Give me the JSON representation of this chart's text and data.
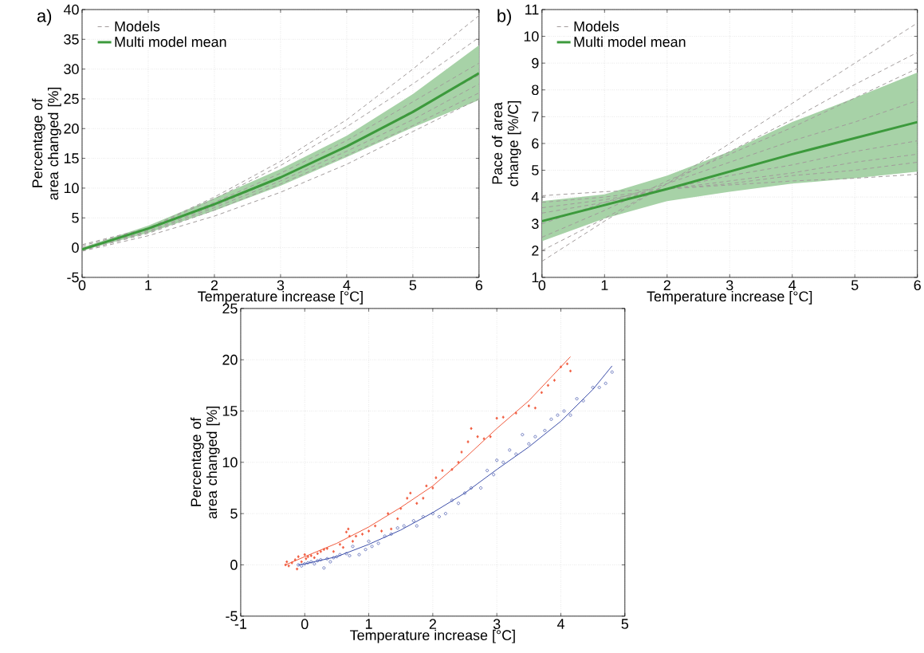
{
  "chart_data": [
    {
      "type": "line",
      "title": "a)",
      "xlabel": "Temperature increase [°C]",
      "ylabel": "Percentage of area changed [%]",
      "x": [
        0,
        1,
        2,
        3,
        4,
        5,
        6
      ],
      "xlim": [
        0,
        6
      ],
      "ylim": [
        -5,
        40
      ],
      "xticks": [
        0,
        1,
        2,
        3,
        4,
        5,
        6
      ],
      "yticks": [
        -5,
        0,
        5,
        10,
        15,
        20,
        25,
        30,
        35,
        40
      ],
      "grid": true,
      "legend": "top left",
      "series": [
        {
          "name": "Models",
          "color": "#a09a9a",
          "line_style": "dashed",
          "values": [
            0.5,
            3.3,
            8.5,
            14.5,
            21.5,
            30,
            39
          ]
        },
        {
          "color": "#a09a9a",
          "line_style": "dashed",
          "values": [
            0.3,
            3.2,
            8.2,
            13.8,
            20.3,
            27.5,
            35.3
          ]
        },
        {
          "color": "#a09a9a",
          "line_style": "dashed",
          "values": [
            0,
            3,
            7.6,
            12.5,
            18,
            24.5,
            31
          ]
        },
        {
          "color": "#a09a9a",
          "line_style": "dashed",
          "values": [
            -0.3,
            2.8,
            7,
            11.7,
            17,
            23,
            29
          ]
        },
        {
          "color": "#a09a9a",
          "line_style": "dashed",
          "values": [
            -0.3,
            2.6,
            6.7,
            11.2,
            16.2,
            21.5,
            27.5
          ]
        },
        {
          "color": "#a09a9a",
          "line_style": "dashed",
          "values": [
            -0.5,
            2.4,
            6.3,
            10.7,
            15.5,
            20.5,
            26
          ]
        },
        {
          "color": "#a09a9a",
          "line_style": "dashed",
          "values": [
            -0.6,
            2,
            5.3,
            9.3,
            14,
            19.5,
            25
          ]
        },
        {
          "name": "Multi model mean",
          "color": "#3c9a3c",
          "line_style": "solid",
          "values": [
            -0.3,
            3.2,
            7.3,
            11.8,
            17,
            22.8,
            29.3
          ],
          "lower": [
            -0.5,
            2.5,
            6.2,
            10.4,
            15.2,
            20.2,
            24.8
          ],
          "upper": [
            0,
            3.7,
            8.3,
            13.2,
            18.8,
            25.8,
            34
          ]
        }
      ]
    },
    {
      "type": "line",
      "title": "b)",
      "xlabel": "Temperature increase [°C]",
      "ylabel": "Pace of area change [%/C]",
      "x": [
        0,
        1,
        2,
        3,
        4,
        5,
        6
      ],
      "xlim": [
        0,
        6
      ],
      "ylim": [
        1,
        11
      ],
      "xticks": [
        0,
        1,
        2,
        3,
        4,
        5,
        6
      ],
      "yticks": [
        1,
        2,
        3,
        4,
        5,
        6,
        7,
        8,
        9,
        10,
        11
      ],
      "grid": true,
      "legend": "top left",
      "series": [
        {
          "name": "Models",
          "color": "#a09a9a",
          "line_style": "dashed",
          "values": [
            1.6,
            3.1,
            4.5,
            6.0,
            7.5,
            9.0,
            10.5
          ]
        },
        {
          "color": "#a09a9a",
          "line_style": "dashed",
          "values": [
            2.0,
            3.2,
            4.5,
            5.7,
            6.9,
            8.2,
            9.4
          ]
        },
        {
          "color": "#a09a9a",
          "line_style": "dashed",
          "values": [
            2.5,
            3.5,
            4.6,
            5.6,
            6.6,
            7.7,
            8.8
          ]
        },
        {
          "color": "#a09a9a",
          "line_style": "dashed",
          "values": [
            3.0,
            3.8,
            4.5,
            5.3,
            6.1,
            6.8,
            7.6
          ]
        },
        {
          "color": "#a09a9a",
          "line_style": "dashed",
          "values": [
            3.4,
            3.8,
            4.3,
            4.8,
            5.2,
            5.7,
            6.1
          ]
        },
        {
          "color": "#a09a9a",
          "line_style": "dashed",
          "values": [
            3.6,
            3.9,
            4.3,
            4.6,
            4.9,
            5.3,
            5.6
          ]
        },
        {
          "color": "#a09a9a",
          "line_style": "dashed",
          "values": [
            3.8,
            4.0,
            4.3,
            4.5,
            4.8,
            5.0,
            5.3
          ]
        },
        {
          "color": "#a09a9a",
          "line_style": "dashed",
          "values": [
            4.05,
            4.2,
            4.3,
            4.45,
            4.6,
            4.7,
            4.85
          ]
        },
        {
          "name": "Multi model mean",
          "color": "#3c9a3c",
          "line_style": "solid",
          "values": [
            3.1,
            3.7,
            4.3,
            4.95,
            5.6,
            6.2,
            6.8
          ],
          "lower": [
            2.35,
            3.2,
            3.85,
            4.2,
            4.5,
            4.7,
            4.95
          ],
          "upper": [
            3.85,
            4.1,
            4.8,
            5.7,
            6.8,
            7.7,
            8.65
          ]
        }
      ]
    },
    {
      "type": "scatter",
      "xlabel": "Temperature increase [°C]",
      "ylabel": "Percentage of area changed [%]",
      "xlim": [
        -1,
        5
      ],
      "ylim": [
        -5,
        25
      ],
      "xticks": [
        -1,
        0,
        1,
        2,
        3,
        4,
        5
      ],
      "yticks": [
        -5,
        0,
        5,
        10,
        15,
        20,
        25
      ],
      "grid": true,
      "series": [
        {
          "color": "#f05a3c",
          "marker": "diamond",
          "x": [
            -0.3,
            -0.28,
            -0.25,
            -0.2,
            -0.15,
            -0.12,
            -0.1,
            -0.05,
            0,
            0.02,
            0.05,
            0.1,
            0.15,
            0.2,
            0.25,
            0.3,
            0.35,
            0.45,
            0.55,
            0.6,
            0.65,
            0.68,
            0.7,
            0.75,
            0.8,
            0.9,
            1.0,
            1.1,
            1.2,
            1.3,
            1.35,
            1.45,
            1.5,
            1.6,
            1.65,
            1.75,
            1.85,
            1.9,
            2.0,
            2.05,
            2.15,
            2.3,
            2.4,
            2.45,
            2.55,
            2.6,
            2.7,
            2.8,
            2.9,
            3.0,
            3.1,
            3.3,
            3.5,
            3.6,
            3.7,
            3.8,
            3.9,
            4.0,
            4.1,
            4.15
          ],
          "values": [
            0,
            0.3,
            -0.1,
            0.2,
            0.5,
            -0.4,
            0.8,
            0.3,
            1.0,
            0.6,
            0.8,
            0.9,
            0.7,
            1.1,
            1.3,
            1.5,
            1.6,
            1.3,
            2.0,
            1.7,
            3.2,
            3.5,
            2.8,
            2.3,
            2.8,
            3.0,
            3.3,
            3.8,
            3.3,
            5.0,
            3.5,
            4.5,
            5.5,
            6.5,
            7.0,
            6.0,
            6.5,
            7.7,
            7.5,
            8.5,
            9.2,
            9.3,
            10.0,
            11.0,
            12.0,
            13.3,
            12.5,
            12.3,
            12.5,
            14.3,
            14.4,
            14.8,
            15.5,
            15.3,
            16.8,
            17.5,
            18.0,
            19.3,
            19.6,
            18.9
          ]
        },
        {
          "color": "#3b4ea8",
          "marker": "circle",
          "x": [
            -0.1,
            -0.05,
            0,
            0.05,
            0.1,
            0.15,
            0.2,
            0.25,
            0.3,
            0.35,
            0.4,
            0.45,
            0.5,
            0.55,
            0.65,
            0.7,
            0.75,
            0.85,
            0.95,
            1.0,
            1.05,
            1.15,
            1.25,
            1.35,
            1.45,
            1.55,
            1.7,
            1.75,
            1.85,
            2.0,
            2.1,
            2.2,
            2.3,
            2.4,
            2.5,
            2.6,
            2.75,
            2.85,
            2.95,
            3.0,
            3.1,
            3.2,
            3.3,
            3.4,
            3.5,
            3.6,
            3.75,
            3.85,
            3.95,
            4.05,
            4.15,
            4.25,
            4.35,
            4.5,
            4.6,
            4.7,
            4.8
          ],
          "values": [
            0,
            -0.1,
            0.1,
            0.2,
            0.3,
            0.1,
            0.4,
            0.5,
            -0.3,
            0.6,
            0.3,
            0.7,
            0.8,
            1.0,
            1.1,
            0.9,
            1.8,
            1.0,
            1.5,
            2.3,
            1.8,
            2.1,
            2.8,
            3.0,
            3.6,
            3.8,
            4.3,
            3.8,
            4.7,
            5.0,
            4.7,
            5.0,
            6.3,
            6.0,
            7.0,
            7.5,
            7.5,
            9.2,
            8.8,
            10.2,
            10.0,
            11.2,
            10.8,
            12.7,
            11.8,
            12.5,
            13.1,
            14.2,
            14.6,
            15.0,
            14.6,
            16.2,
            16.0,
            17.3,
            17.3,
            17.7,
            18.8
          ]
        },
        {
          "type": "line",
          "color": "#f05a3c",
          "line_style": "solid",
          "x": [
            -0.3,
            0,
            0.5,
            1,
            1.5,
            2,
            2.5,
            3,
            3.5,
            4,
            4.15
          ],
          "values": [
            0,
            0.8,
            2.1,
            3.7,
            5.6,
            7.7,
            10.4,
            13.3,
            16,
            19.3,
            20.3
          ]
        },
        {
          "type": "line",
          "color": "#3b4ea8",
          "line_style": "solid",
          "x": [
            -0.1,
            0,
            0.5,
            1,
            1.5,
            2,
            2.5,
            3,
            3.5,
            4,
            4.5,
            4.8
          ],
          "values": [
            0,
            0.1,
            0.8,
            2.0,
            3.4,
            5.1,
            7.0,
            9.3,
            11.5,
            14.0,
            17.1,
            19.4
          ]
        }
      ]
    }
  ]
}
